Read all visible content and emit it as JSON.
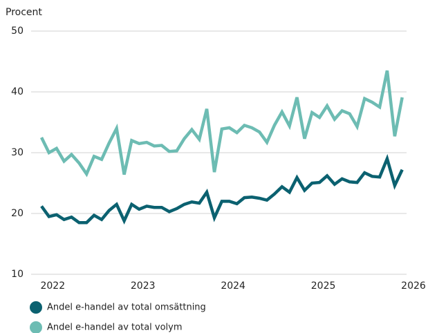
{
  "chart_data": {
    "type": "line",
    "y_label": "Procent",
    "x": [
      2021.875,
      2021.958,
      2022.042,
      2022.125,
      2022.208,
      2022.292,
      2022.375,
      2022.458,
      2022.542,
      2022.625,
      2022.708,
      2022.792,
      2022.875,
      2022.958,
      2023.042,
      2023.125,
      2023.208,
      2023.292,
      2023.375,
      2023.458,
      2023.542,
      2023.625,
      2023.708,
      2023.792,
      2023.875,
      2023.958,
      2024.042,
      2024.125,
      2024.208,
      2024.292,
      2024.375,
      2024.458,
      2024.542,
      2024.625,
      2024.708,
      2024.792,
      2024.875,
      2024.958,
      2025.042,
      2025.125,
      2025.208,
      2025.292,
      2025.375,
      2025.458,
      2025.542,
      2025.625,
      2025.708,
      2025.792,
      2025.875
    ],
    "series": [
      {
        "name": "Andel e-handel av total omsättning",
        "color": "#0b6170",
        "values": [
          21.2,
          19.5,
          19.8,
          19.0,
          19.4,
          18.5,
          18.5,
          19.7,
          19.0,
          20.5,
          21.5,
          18.8,
          21.5,
          20.7,
          21.2,
          21.0,
          21.0,
          20.3,
          20.8,
          21.5,
          21.9,
          21.7,
          23.5,
          19.3,
          22.0,
          22.0,
          21.6,
          22.6,
          22.7,
          22.5,
          22.2,
          23.2,
          24.4,
          23.5,
          25.9,
          23.8,
          25.0,
          25.1,
          26.2,
          24.8,
          25.7,
          25.2,
          25.1,
          26.7,
          26.1,
          26.0,
          29.0,
          24.6,
          27.2
        ]
      },
      {
        "name": "Andel e-handel av total volym",
        "color": "#6dbcb3",
        "values": [
          32.5,
          30.0,
          30.7,
          28.6,
          29.7,
          28.3,
          26.5,
          29.4,
          28.9,
          31.6,
          34.0,
          26.4,
          32.0,
          31.5,
          31.7,
          31.1,
          31.2,
          30.2,
          30.3,
          32.3,
          33.8,
          32.2,
          37.2,
          26.8,
          33.9,
          34.1,
          33.3,
          34.5,
          34.1,
          33.4,
          31.7,
          34.5,
          36.7,
          34.4,
          39.1,
          32.3,
          36.6,
          35.8,
          37.7,
          35.5,
          36.9,
          36.4,
          34.3,
          38.9,
          38.3,
          37.5,
          43.5,
          32.7,
          39.1
        ]
      }
    ],
    "xlim": [
      2021.76,
      2026
    ],
    "xticks": [
      2022,
      2023,
      2024,
      2025,
      2026
    ],
    "ylim": [
      10,
      50
    ],
    "yticks": [
      10,
      20,
      30,
      40,
      50
    ],
    "grid": true
  }
}
